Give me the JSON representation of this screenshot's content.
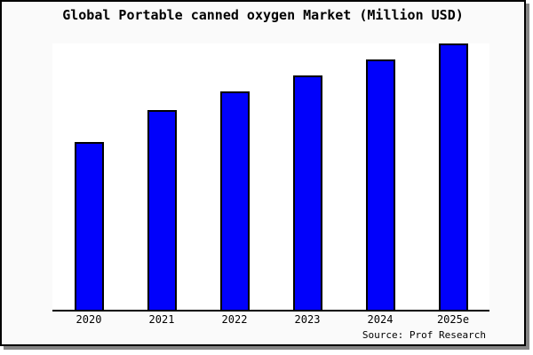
{
  "chart_data": {
    "type": "bar",
    "title": "Global Portable canned oxygen Market (Million USD)",
    "categories": [
      "2020",
      "2021",
      "2022",
      "2023",
      "2024",
      "2025e"
    ],
    "values": [
      63,
      75,
      82,
      88,
      94,
      100
    ],
    "xlabel": "",
    "ylabel": "",
    "ylim": [
      0,
      100
    ],
    "y_axis_visible": false,
    "gridlines": false,
    "legend": "none",
    "values_are_relative_estimates": true,
    "source_label": "Source: Prof Research"
  },
  "source": {
    "text": "Source: Prof Research"
  },
  "colors": {
    "bar_fill": "#0101fb",
    "bar_border": "#000000",
    "frame_background": "#fafafa",
    "plot_background": "#ffffff",
    "frame_border": "#000000",
    "frame_shadow": "#858585",
    "text": "#000000"
  }
}
